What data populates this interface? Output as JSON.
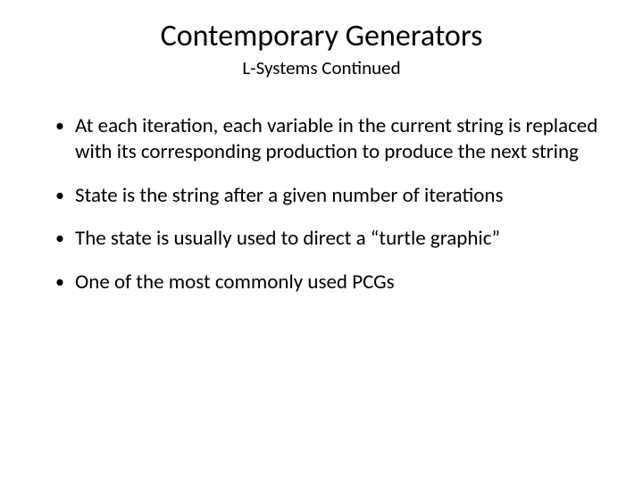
{
  "slide": {
    "title": "Contemporary Generators",
    "subtitle": "L-Systems Continued",
    "bullets": [
      {
        "text": "At each iteration, each variable in the current string is replaced with its corresponding production to produce the next string"
      },
      {
        "text": "State is the string after a given number of iterations"
      },
      {
        "text": "The state is usually used to direct a “turtle graphic”"
      },
      {
        "text": "One of the most commonly used PCGs"
      }
    ],
    "bullet_marker": "•",
    "colors": {
      "background": "#ffffff",
      "text": "#000000"
    },
    "typography": {
      "title_fontsize": 34,
      "subtitle_fontsize": 21,
      "body_fontsize": 23,
      "font_family": "Calibri"
    }
  }
}
